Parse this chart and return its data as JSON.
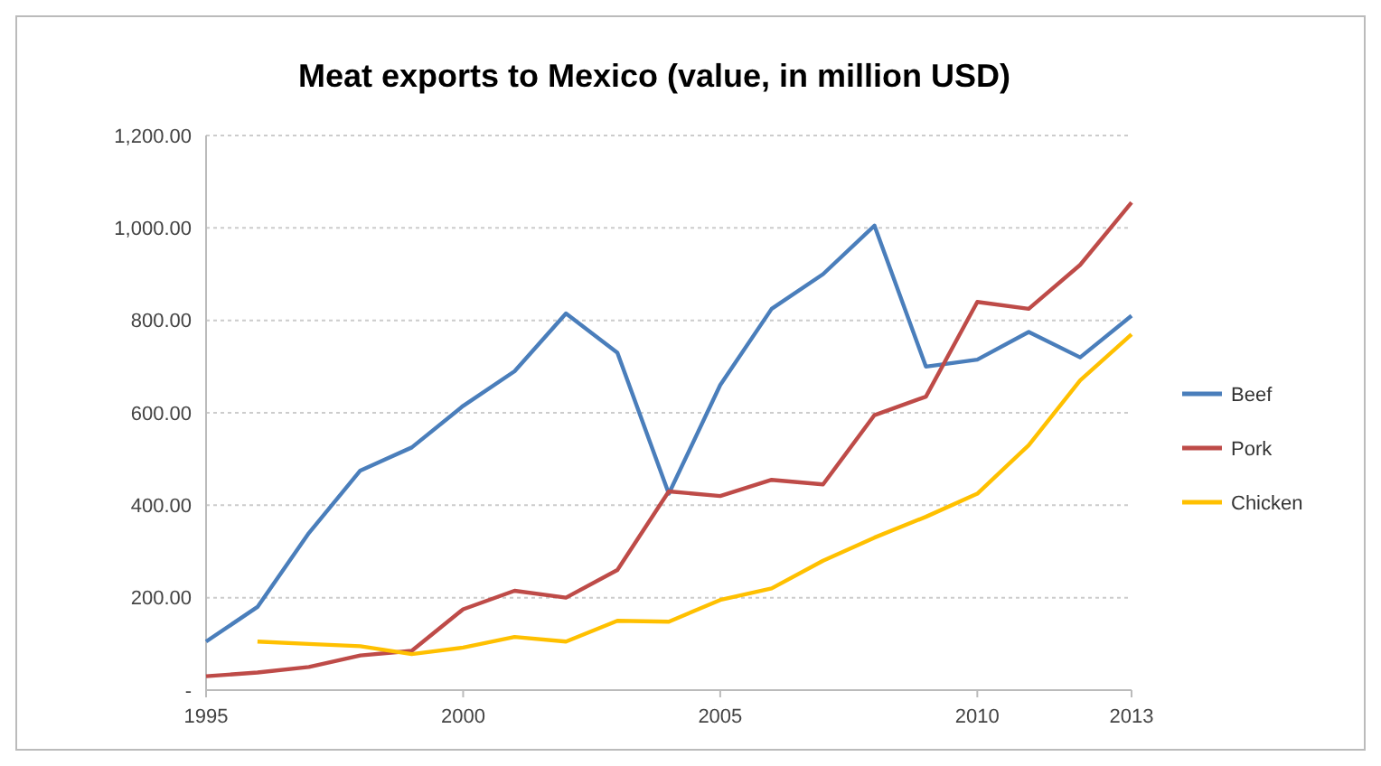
{
  "chart_data": {
    "type": "line",
    "title": "Meat exports to Mexico (value, in million USD)",
    "x": [
      1995,
      1996,
      1997,
      1998,
      1999,
      2000,
      2001,
      2002,
      2003,
      2004,
      2005,
      2006,
      2007,
      2008,
      2009,
      2010,
      2011,
      2012,
      2013
    ],
    "series": [
      {
        "name": "Beef",
        "color": "#4a7ebb",
        "values": [
          105,
          180,
          340,
          475,
          525,
          615,
          690,
          815,
          730,
          425,
          660,
          825,
          900,
          1005,
          700,
          715,
          775,
          720,
          810
        ]
      },
      {
        "name": "Pork",
        "color": "#be4b48",
        "values": [
          30,
          38,
          50,
          75,
          85,
          175,
          215,
          200,
          260,
          430,
          420,
          455,
          445,
          595,
          635,
          840,
          825,
          920,
          1055
        ]
      },
      {
        "name": "Chicken",
        "color": "#ffc000",
        "values": [
          null,
          105,
          100,
          95,
          78,
          92,
          115,
          105,
          150,
          148,
          195,
          220,
          280,
          330,
          375,
          425,
          530,
          670,
          770
        ]
      }
    ],
    "xlim": [
      1995,
      2013
    ],
    "xticks": [
      1995,
      2000,
      2005,
      2010,
      2013
    ],
    "ylim": [
      0,
      1200
    ],
    "yticks": [
      {
        "value": 0,
        "label": "-"
      },
      {
        "value": 200,
        "label": "200.00"
      },
      {
        "value": 400,
        "label": "400.00"
      },
      {
        "value": 600,
        "label": "600.00"
      },
      {
        "value": 800,
        "label": "800.00"
      },
      {
        "value": 1000,
        "label": "1,000.00"
      },
      {
        "value": 1200,
        "label": "1,200.00"
      }
    ],
    "grid": "y",
    "legend": "right",
    "marker": "none",
    "line_style": "solid"
  }
}
